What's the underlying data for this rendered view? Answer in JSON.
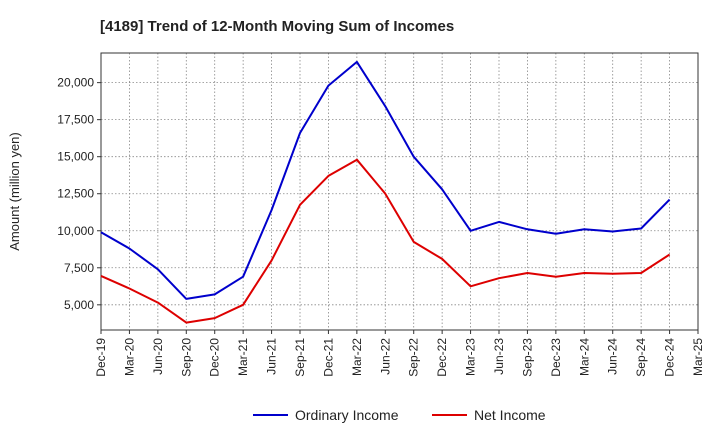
{
  "chart_data": {
    "type": "line",
    "title": "[4189]  Trend of 12-Month Moving Sum of Incomes",
    "xlabel": "",
    "ylabel": "Amount (million yen)",
    "categories": [
      "Dec-19",
      "Mar-20",
      "Jun-20",
      "Sep-20",
      "Dec-20",
      "Mar-21",
      "Jun-21",
      "Sep-21",
      "Dec-21",
      "Mar-22",
      "Jun-22",
      "Sep-22",
      "Dec-22",
      "Mar-23",
      "Jun-23",
      "Sep-23",
      "Dec-23",
      "Mar-24",
      "Jun-24",
      "Sep-24",
      "Dec-24",
      "Mar-25"
    ],
    "yticks": [
      5000,
      7500,
      10000,
      12500,
      15000,
      17500,
      20000
    ],
    "ytick_labels": [
      "5,000",
      "7,500",
      "10,000",
      "12,500",
      "15,000",
      "17,500",
      "20,000"
    ],
    "ylim": [
      3300,
      22000
    ],
    "grid": true,
    "legend_position": "bottom-center",
    "series": [
      {
        "name": "Ordinary Income",
        "color": "#0000cc",
        "values": [
          9900,
          8800,
          7400,
          5400,
          5700,
          6900,
          11400,
          16600,
          19800,
          21400,
          18400,
          15000,
          12800,
          10000,
          10600,
          10100,
          9800,
          10100,
          9950,
          10150,
          12100,
          null
        ]
      },
      {
        "name": "Net Income",
        "color": "#dd0000",
        "values": [
          6950,
          6100,
          5150,
          3800,
          4100,
          5000,
          8000,
          11750,
          13700,
          14800,
          12500,
          9250,
          8100,
          6250,
          6800,
          7150,
          6900,
          7150,
          7100,
          7150,
          8400,
          null
        ]
      }
    ]
  }
}
